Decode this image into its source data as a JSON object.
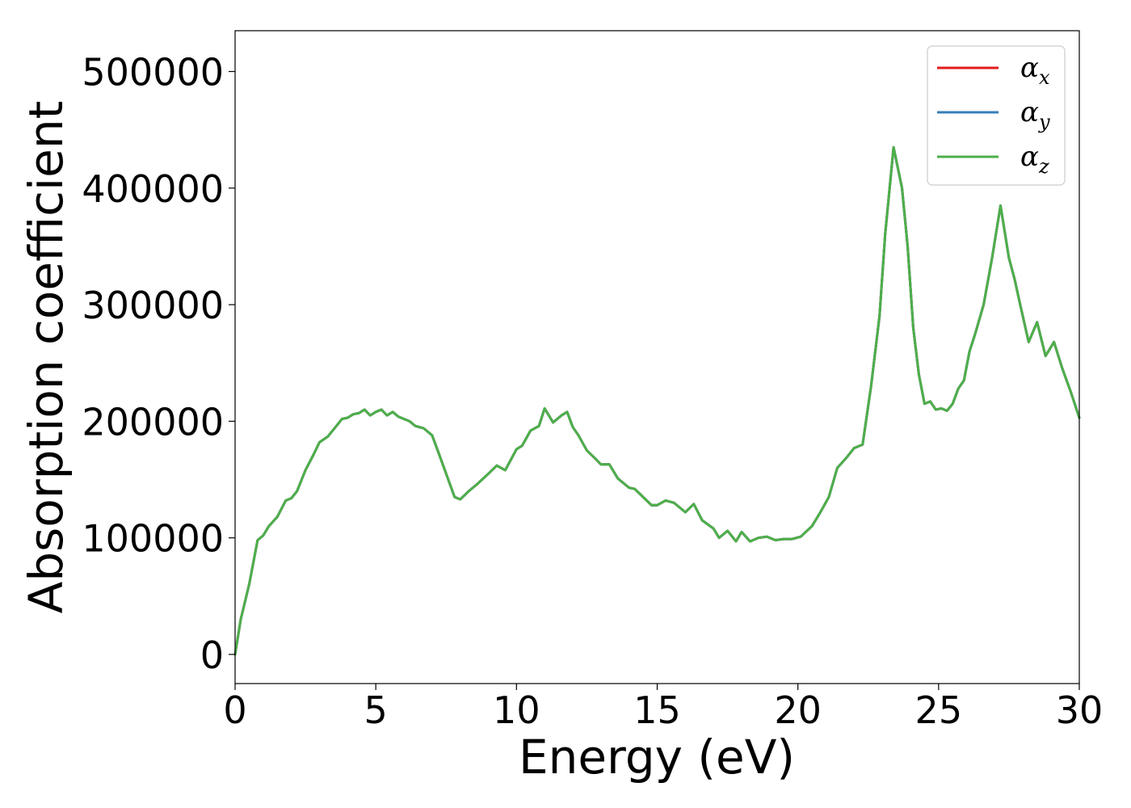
{
  "chart_data": {
    "type": "line",
    "xlabel": "Energy (eV)",
    "ylabel": "Absorption coefficient",
    "xlim": [
      0,
      30
    ],
    "ylim": [
      -25000,
      535000
    ],
    "xticks": [
      0,
      5,
      10,
      15,
      20,
      25,
      30
    ],
    "xtick_labels": [
      "0",
      "5",
      "10",
      "15",
      "20",
      "25",
      "30"
    ],
    "yticks": [
      0,
      100000,
      200000,
      300000,
      400000,
      500000
    ],
    "ytick_labels": [
      "0",
      "100000",
      "200000",
      "300000",
      "400000",
      "500000"
    ],
    "grid": false,
    "legend_position": "top-right",
    "x": [
      0,
      0.2,
      0.5,
      0.8,
      1.0,
      1.2,
      1.5,
      1.8,
      2.0,
      2.2,
      2.5,
      2.8,
      3.0,
      3.3,
      3.6,
      3.8,
      4.0,
      4.2,
      4.4,
      4.6,
      4.8,
      5.0,
      5.2,
      5.4,
      5.6,
      5.8,
      6.0,
      6.2,
      6.4,
      6.7,
      7.0,
      7.2,
      7.5,
      7.8,
      8.0,
      8.3,
      8.6,
      9.0,
      9.3,
      9.6,
      10.0,
      10.2,
      10.5,
      10.8,
      11.0,
      11.3,
      11.6,
      11.8,
      12.0,
      12.2,
      12.5,
      12.8,
      13.0,
      13.3,
      13.6,
      14.0,
      14.2,
      14.5,
      14.8,
      15.0,
      15.3,
      15.6,
      16.0,
      16.3,
      16.6,
      17.0,
      17.2,
      17.5,
      17.8,
      18.0,
      18.3,
      18.6,
      18.9,
      19.2,
      19.5,
      19.8,
      20.1,
      20.5,
      20.8,
      21.1,
      21.4,
      21.7,
      22.0,
      22.3,
      22.6,
      22.9,
      23.1,
      23.4,
      23.7,
      23.9,
      24.1,
      24.3,
      24.5,
      24.7,
      24.9,
      25.1,
      25.3,
      25.5,
      25.7,
      25.9,
      26.1,
      26.3,
      26.6,
      26.9,
      27.2,
      27.5,
      27.7,
      27.9,
      28.2,
      28.5,
      28.8,
      29.1,
      29.4,
      29.7,
      30.0
    ],
    "series": [
      {
        "name": "α_x",
        "color": "#e41a1c",
        "values": [
          0,
          30000,
          60000,
          98000,
          102000,
          110000,
          118000,
          132000,
          134000,
          140000,
          158000,
          172000,
          182000,
          187000,
          196000,
          202000,
          203000,
          206000,
          207000,
          210000,
          205000,
          208000,
          210000,
          205000,
          208000,
          204000,
          202000,
          200000,
          196000,
          194000,
          188000,
          175000,
          155000,
          135000,
          133000,
          140000,
          146000,
          155000,
          162000,
          158000,
          176000,
          179000,
          192000,
          196000,
          211000,
          199000,
          205000,
          208000,
          195000,
          188000,
          175000,
          168000,
          163000,
          163000,
          151000,
          143000,
          142000,
          135000,
          128000,
          128000,
          132000,
          130000,
          122000,
          129000,
          115000,
          108000,
          100000,
          106000,
          97000,
          105000,
          97000,
          100000,
          101000,
          98000,
          99000,
          99000,
          101000,
          110000,
          122000,
          135000,
          160000,
          168000,
          177000,
          180000,
          230000,
          290000,
          360000,
          435000,
          400000,
          350000,
          280000,
          240000,
          215000,
          217000,
          210000,
          211000,
          209000,
          215000,
          228000,
          235000,
          260000,
          275000,
          300000,
          340000,
          385000,
          340000,
          322000,
          300000,
          268000,
          285000,
          256000,
          268000,
          245000,
          225000,
          203000
        ]
      },
      {
        "name": "α_y",
        "color": "#377eb8",
        "values": [
          0,
          30000,
          60000,
          98000,
          102000,
          110000,
          118000,
          132000,
          134000,
          140000,
          158000,
          172000,
          182000,
          187000,
          196000,
          202000,
          203000,
          206000,
          207000,
          210000,
          205000,
          208000,
          210000,
          205000,
          208000,
          204000,
          202000,
          200000,
          196000,
          194000,
          188000,
          175000,
          155000,
          135000,
          133000,
          140000,
          146000,
          155000,
          162000,
          158000,
          176000,
          179000,
          192000,
          196000,
          211000,
          199000,
          205000,
          208000,
          195000,
          188000,
          175000,
          168000,
          163000,
          163000,
          151000,
          143000,
          142000,
          135000,
          128000,
          128000,
          132000,
          130000,
          122000,
          129000,
          115000,
          108000,
          100000,
          106000,
          97000,
          105000,
          97000,
          100000,
          101000,
          98000,
          99000,
          99000,
          101000,
          110000,
          122000,
          135000,
          160000,
          168000,
          177000,
          180000,
          230000,
          290000,
          360000,
          435000,
          400000,
          350000,
          280000,
          240000,
          215000,
          217000,
          210000,
          211000,
          209000,
          215000,
          228000,
          235000,
          260000,
          275000,
          300000,
          340000,
          385000,
          340000,
          322000,
          300000,
          268000,
          285000,
          256000,
          268000,
          245000,
          225000,
          203000
        ]
      },
      {
        "name": "α_z",
        "color": "#4daf4a",
        "values": [
          0,
          30000,
          60000,
          98000,
          102000,
          110000,
          118000,
          132000,
          134000,
          140000,
          158000,
          172000,
          182000,
          187000,
          196000,
          202000,
          203000,
          206000,
          207000,
          210000,
          205000,
          208000,
          210000,
          205000,
          208000,
          204000,
          202000,
          200000,
          196000,
          194000,
          188000,
          175000,
          155000,
          135000,
          133000,
          140000,
          146000,
          155000,
          162000,
          158000,
          176000,
          179000,
          192000,
          196000,
          211000,
          199000,
          205000,
          208000,
          195000,
          188000,
          175000,
          168000,
          163000,
          163000,
          151000,
          143000,
          142000,
          135000,
          128000,
          128000,
          132000,
          130000,
          122000,
          129000,
          115000,
          108000,
          100000,
          106000,
          97000,
          105000,
          97000,
          100000,
          101000,
          98000,
          99000,
          99000,
          101000,
          110000,
          122000,
          135000,
          160000,
          168000,
          177000,
          180000,
          230000,
          290000,
          360000,
          435000,
          400000,
          350000,
          280000,
          240000,
          215000,
          217000,
          210000,
          211000,
          209000,
          215000,
          228000,
          235000,
          260000,
          275000,
          300000,
          340000,
          385000,
          340000,
          322000,
          300000,
          268000,
          285000,
          256000,
          268000,
          245000,
          225000,
          203000
        ]
      }
    ],
    "legend": [
      {
        "base": "α",
        "sub": "x",
        "color": "#e41a1c"
      },
      {
        "base": "α",
        "sub": "y",
        "color": "#377eb8"
      },
      {
        "base": "α",
        "sub": "z",
        "color": "#4daf4a"
      }
    ]
  }
}
